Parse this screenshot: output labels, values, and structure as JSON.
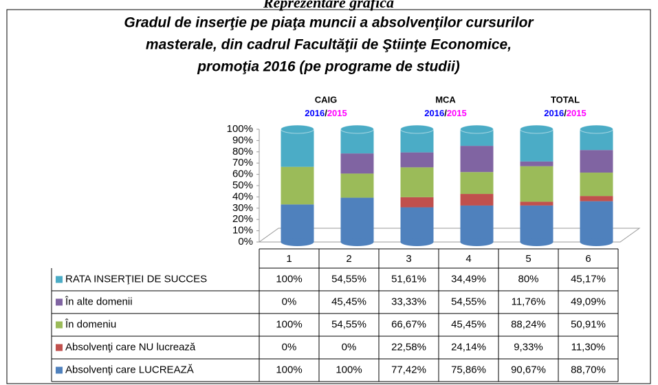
{
  "caption": "Reprezentare grafică",
  "chart_data": {
    "type": "bar",
    "stacking": "percent",
    "title": [
      "Gradul de inserţie pe piaţa muncii a absolvenţilor cursurilor",
      "masterale, din cadrul Facultăţii de Ştiinţe Economice,",
      "promoţia 2016 (pe programe de studii)"
    ],
    "categories": [
      "1",
      "2",
      "3",
      "4",
      "5",
      "6"
    ],
    "groups": [
      {
        "label": "CAIG",
        "years": [
          {
            "text": "2016",
            "color": "#0000ff"
          },
          {
            "text": "2015",
            "color": "#ff00ff"
          }
        ]
      },
      {
        "label": "MCA",
        "years": [
          {
            "text": "2016",
            "color": "#0000ff"
          },
          {
            "text": "2015",
            "color": "#ff00ff"
          }
        ]
      },
      {
        "label": "TOTAL",
        "years": [
          {
            "text": "2016",
            "color": "#0000ff"
          },
          {
            "text": "2015",
            "color": "#ff00ff"
          }
        ]
      }
    ],
    "year_separator": "/",
    "series": [
      {
        "name": "RATA INSERŢIEI DE  SUCCES",
        "color": "#4bacc6",
        "values": [
          100,
          54.55,
          51.61,
          34.49,
          80,
          45.17
        ],
        "value_labels": [
          "100%",
          "54,55%",
          "51,61%",
          "34,49%",
          "80%",
          "45,17%"
        ]
      },
      {
        "name": "În alte domenii",
        "color": "#8064a2",
        "values": [
          0,
          45.45,
          33.33,
          54.55,
          11.76,
          49.09
        ],
        "value_labels": [
          "0%",
          "45,45%",
          "33,33%",
          "54,55%",
          "11,76%",
          "49,09%"
        ]
      },
      {
        "name": "În domeniu",
        "color": "#9bbb59",
        "values": [
          100,
          54.55,
          66.67,
          45.45,
          88.24,
          50.91
        ],
        "value_labels": [
          "100%",
          "54,55%",
          "66,67%",
          "45,45%",
          "88,24%",
          "50,91%"
        ]
      },
      {
        "name": "Absolvenţi care NU lucrează",
        "color": "#c0504d",
        "values": [
          0,
          0,
          22.58,
          24.14,
          9.33,
          11.3
        ],
        "value_labels": [
          "0%",
          "0%",
          "22,58%",
          "24,14%",
          "9,33%",
          "11,30%"
        ]
      },
      {
        "name": "Absolvenţi care LUCREAZĂ",
        "color": "#4f81bd",
        "values": [
          100,
          100,
          77.42,
          75.86,
          90.67,
          88.7
        ],
        "value_labels": [
          "100%",
          "100%",
          "77,42%",
          "75,86%",
          "90,67%",
          "88,70%"
        ]
      }
    ],
    "ylim": [
      0,
      100
    ],
    "yticks": [
      {
        "value": 0,
        "label": "0%"
      },
      {
        "value": 10,
        "label": "10%"
      },
      {
        "value": 20,
        "label": "20%"
      },
      {
        "value": 30,
        "label": "30%"
      },
      {
        "value": 40,
        "label": "40%"
      },
      {
        "value": 50,
        "label": "50%"
      },
      {
        "value": 60,
        "label": "60%"
      },
      {
        "value": 70,
        "label": "70%"
      },
      {
        "value": 80,
        "label": "80%"
      },
      {
        "value": 90,
        "label": "90%"
      },
      {
        "value": 100,
        "label": "100%"
      }
    ]
  }
}
